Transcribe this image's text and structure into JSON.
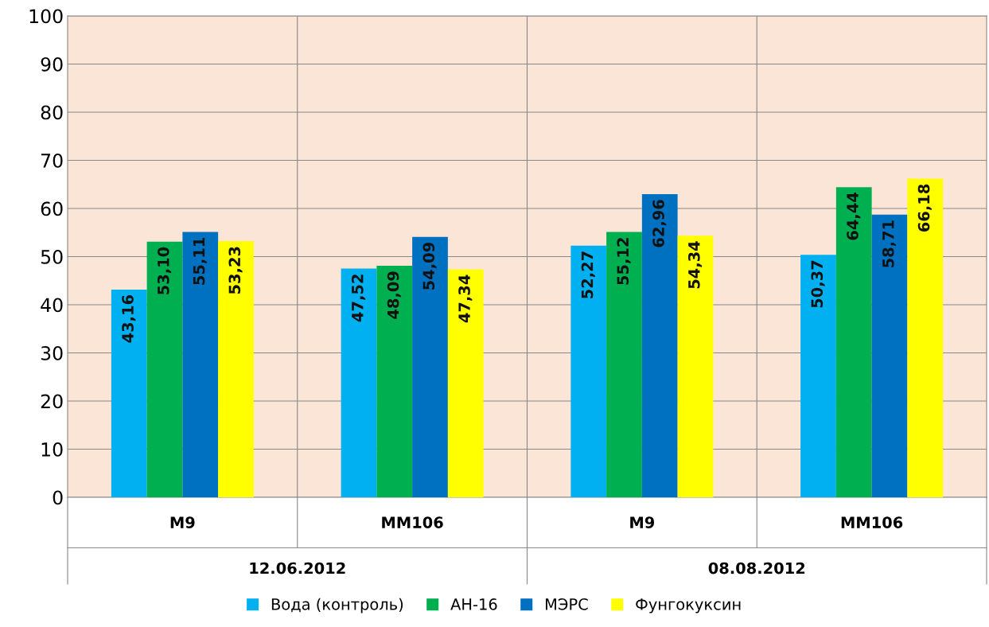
{
  "chart_data": {
    "type": "bar",
    "categories": [
      "M9",
      "MM106",
      "M9",
      "MM106"
    ],
    "annotations": [
      "12.06.2012",
      "08.08.2012"
    ],
    "series": [
      {
        "name": "Вода (контроль)",
        "color": "#00b0f0",
        "values": [
          43.16,
          47.52,
          52.27,
          50.37
        ],
        "value_labels": [
          "43,16",
          "47,52",
          "52,27",
          "50,37"
        ]
      },
      {
        "name": "АН-16",
        "color": "#00b050",
        "values": [
          53.1,
          48.09,
          55.12,
          64.44
        ],
        "value_labels": [
          "53,10",
          "48,09",
          "55,12",
          "64,44"
        ]
      },
      {
        "name": "МЭРС",
        "color": "#0070c0",
        "values": [
          55.11,
          54.09,
          62.96,
          58.71
        ],
        "value_labels": [
          "55,11",
          "54,09",
          "62,96",
          "58,71"
        ]
      },
      {
        "name": "Фунгокуксин",
        "color": "#ffff00",
        "values": [
          53.23,
          47.34,
          54.34,
          66.18
        ],
        "value_labels": [
          "53,23",
          "47,34",
          "54,34",
          "66,18"
        ]
      }
    ],
    "ylim": [
      0,
      100
    ],
    "yticks": [
      0,
      10,
      20,
      30,
      40,
      50,
      60,
      70,
      80,
      90,
      100
    ],
    "grid": "y",
    "legend": "bottom"
  }
}
